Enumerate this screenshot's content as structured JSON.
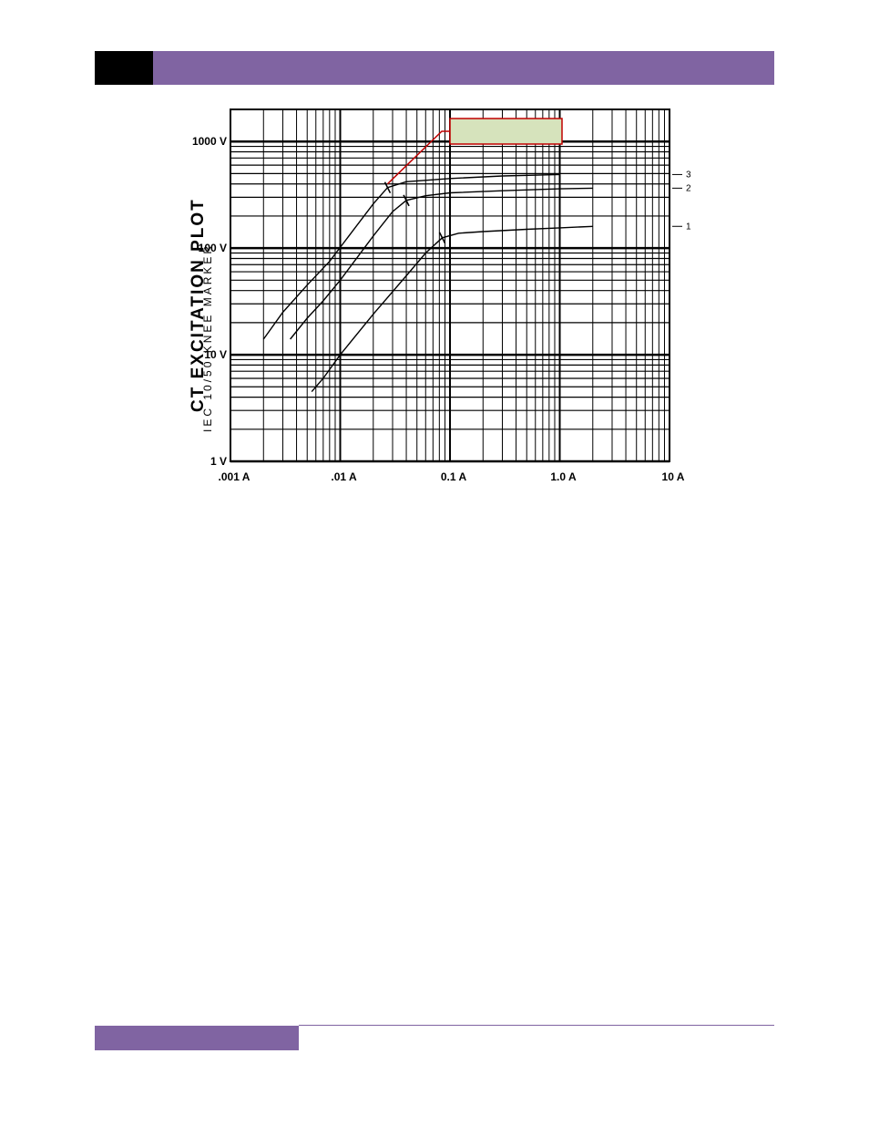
{
  "header": {
    "accent_color": "#8064a2",
    "block_color": "#000000"
  },
  "footer": {
    "accent_color": "#8064a2"
  },
  "chart_data": {
    "type": "line",
    "title": "CT EXCITATION PLOT",
    "subtitle": "IEC 10/50 KNEE MARKER",
    "x_scale": "log",
    "y_scale": "log",
    "xlim": [
      0.001,
      10
    ],
    "ylim": [
      1,
      2000
    ],
    "grid": true,
    "x_tick_values": [
      0.001,
      0.01,
      0.1,
      1,
      10
    ],
    "x_tick_labels": [
      ".001 A",
      ".01 A",
      "0.1 A",
      "1.0 A",
      "10 A"
    ],
    "y_tick_values": [
      1,
      10,
      100,
      1000
    ],
    "y_tick_labels": [
      "1 V",
      "10 V",
      "100 V",
      "1000 V"
    ],
    "series": [
      {
        "name": "1",
        "knee": [
          0.085,
          125
        ],
        "points": [
          [
            0.0055,
            4.5
          ],
          [
            0.007,
            6
          ],
          [
            0.01,
            10
          ],
          [
            0.02,
            24
          ],
          [
            0.04,
            55
          ],
          [
            0.06,
            90
          ],
          [
            0.085,
            125
          ],
          [
            0.12,
            138
          ],
          [
            0.2,
            143
          ],
          [
            0.5,
            150
          ],
          [
            1.0,
            155
          ],
          [
            2.0,
            160
          ]
        ]
      },
      {
        "name": "2",
        "knee": [
          0.04,
          280
        ],
        "points": [
          [
            0.0035,
            14
          ],
          [
            0.005,
            22
          ],
          [
            0.007,
            32
          ],
          [
            0.01,
            50
          ],
          [
            0.02,
            130
          ],
          [
            0.03,
            220
          ],
          [
            0.04,
            280
          ],
          [
            0.06,
            310
          ],
          [
            0.1,
            330
          ],
          [
            0.3,
            345
          ],
          [
            1.0,
            360
          ],
          [
            2.0,
            365
          ]
        ]
      },
      {
        "name": "3",
        "knee": [
          0.027,
          370
        ],
        "points": [
          [
            0.002,
            14
          ],
          [
            0.003,
            25
          ],
          [
            0.005,
            45
          ],
          [
            0.008,
            75
          ],
          [
            0.012,
            130
          ],
          [
            0.02,
            260
          ],
          [
            0.027,
            370
          ],
          [
            0.04,
            420
          ],
          [
            0.1,
            450
          ],
          [
            0.3,
            475
          ],
          [
            1.0,
            490
          ]
        ]
      }
    ],
    "annotation_box": {
      "text": "",
      "fill": "#d6e3bc",
      "stroke": "#c00000",
      "points_to_series": "3"
    }
  }
}
